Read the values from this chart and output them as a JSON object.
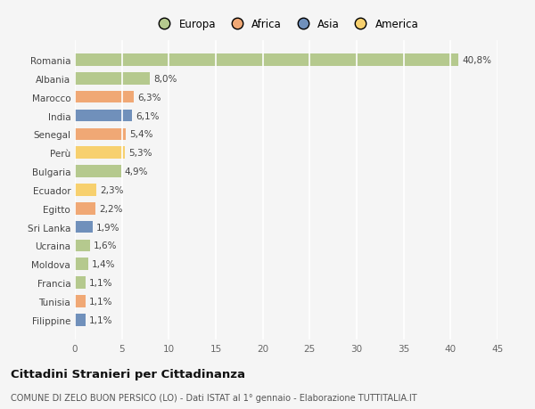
{
  "countries": [
    "Romania",
    "Albania",
    "Marocco",
    "India",
    "Senegal",
    "Perù",
    "Bulgaria",
    "Ecuador",
    "Egitto",
    "Sri Lanka",
    "Ucraina",
    "Moldova",
    "Francia",
    "Tunisia",
    "Filippine"
  ],
  "values": [
    40.8,
    8.0,
    6.3,
    6.1,
    5.4,
    5.3,
    4.9,
    2.3,
    2.2,
    1.9,
    1.6,
    1.4,
    1.1,
    1.1,
    1.1
  ],
  "labels": [
    "40,8%",
    "8,0%",
    "6,3%",
    "6,1%",
    "5,4%",
    "5,3%",
    "4,9%",
    "2,3%",
    "2,2%",
    "1,9%",
    "1,6%",
    "1,4%",
    "1,1%",
    "1,1%",
    "1,1%"
  ],
  "colors": [
    "#b5c98e",
    "#b5c98e",
    "#f0a875",
    "#7090bb",
    "#f0a875",
    "#f7d06e",
    "#b5c98e",
    "#f7d06e",
    "#f0a875",
    "#7090bb",
    "#b5c98e",
    "#b5c98e",
    "#b5c98e",
    "#f0a875",
    "#7090bb"
  ],
  "legend_labels": [
    "Europa",
    "Africa",
    "Asia",
    "America"
  ],
  "legend_colors": [
    "#b5c98e",
    "#f0a875",
    "#7090bb",
    "#f7d06e"
  ],
  "title": "Cittadini Stranieri per Cittadinanza",
  "subtitle": "COMUNE DI ZELO BUON PERSICO (LO) - Dati ISTAT al 1° gennaio - Elaborazione TUTTITALIA.IT",
  "xlim": [
    0,
    45
  ],
  "xticks": [
    0,
    5,
    10,
    15,
    20,
    25,
    30,
    35,
    40,
    45
  ],
  "bg_color": "#f5f5f5",
  "grid_color": "#ffffff",
  "bar_height": 0.65
}
